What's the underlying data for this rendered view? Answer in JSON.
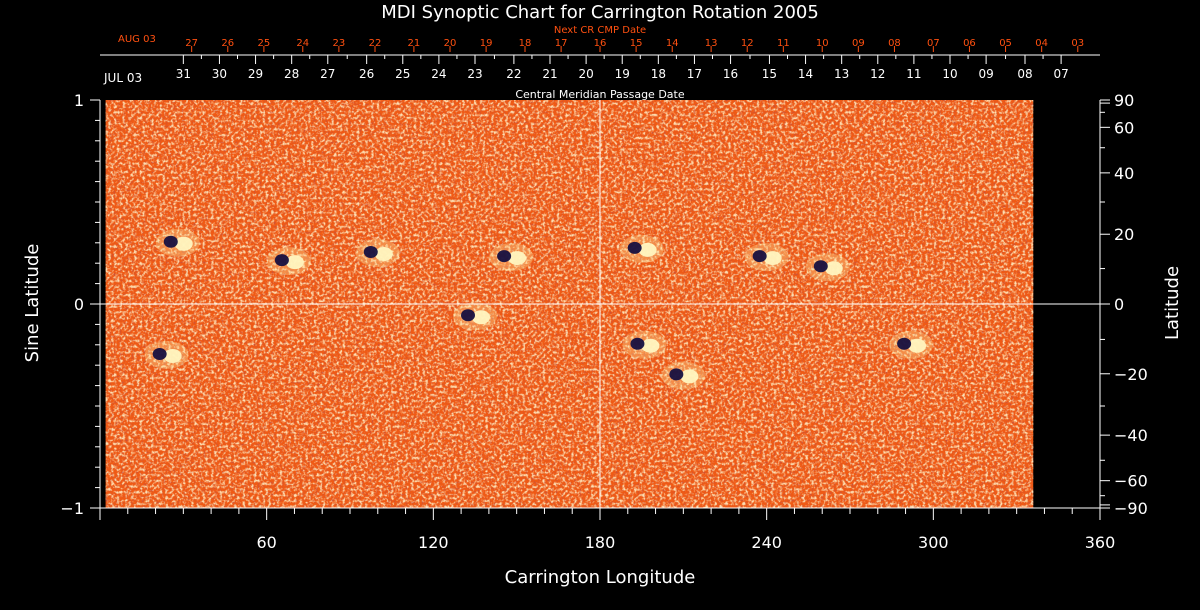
{
  "chart_data": {
    "type": "heatmap",
    "title": "MDI Synoptic Chart for Carrington Rotation 2005",
    "xlabel": "Carrington Longitude",
    "ylabel_left": "Sine Latitude",
    "ylabel_right": "Latitude",
    "xlim": [
      0,
      360
    ],
    "ylim": [
      -1,
      1
    ],
    "x_ticks": [
      60,
      120,
      180,
      240,
      300,
      360
    ],
    "y_ticks_left": [
      {
        "value": 1,
        "label": "1"
      },
      {
        "value": 0,
        "label": "0"
      },
      {
        "value": -1,
        "label": "−1"
      }
    ],
    "y_ticks_right": [
      {
        "deg": 90,
        "label": "90"
      },
      {
        "deg": 60,
        "label": "60"
      },
      {
        "deg": 40,
        "label": "40"
      },
      {
        "deg": 20,
        "label": "20"
      },
      {
        "deg": 0,
        "label": "0"
      },
      {
        "deg": -20,
        "label": "−20"
      },
      {
        "deg": -40,
        "label": "−40"
      },
      {
        "deg": -60,
        "label": "−60"
      },
      {
        "deg": -90,
        "label": "−90"
      }
    ],
    "cmp_axis": {
      "label": "Central Meridian Passage Date",
      "start_label": "JUL 03",
      "dates": [
        {
          "lon": 30,
          "label": "31"
        },
        {
          "lon": 43,
          "label": "30"
        },
        {
          "lon": 56,
          "label": "29"
        },
        {
          "lon": 69,
          "label": "28"
        },
        {
          "lon": 82,
          "label": "27"
        },
        {
          "lon": 96,
          "label": "26"
        },
        {
          "lon": 109,
          "label": "25"
        },
        {
          "lon": 122,
          "label": "24"
        },
        {
          "lon": 135,
          "label": "23"
        },
        {
          "lon": 149,
          "label": "22"
        },
        {
          "lon": 162,
          "label": "21"
        },
        {
          "lon": 175,
          "label": "20"
        },
        {
          "lon": 188,
          "label": "19"
        },
        {
          "lon": 201,
          "label": "18"
        },
        {
          "lon": 214,
          "label": "17"
        },
        {
          "lon": 227,
          "label": "16"
        },
        {
          "lon": 241,
          "label": "15"
        },
        {
          "lon": 254,
          "label": "14"
        },
        {
          "lon": 267,
          "label": "13"
        },
        {
          "lon": 280,
          "label": "12"
        },
        {
          "lon": 293,
          "label": "11"
        },
        {
          "lon": 306,
          "label": "10"
        },
        {
          "lon": 319,
          "label": "09"
        },
        {
          "lon": 333,
          "label": "08"
        },
        {
          "lon": 346,
          "label": "07"
        }
      ]
    },
    "next_cr_axis": {
      "label": "Next CR CMP Date",
      "start_label": "AUG 03",
      "dates": [
        {
          "lon": 33,
          "label": "27"
        },
        {
          "lon": 46,
          "label": "26"
        },
        {
          "lon": 59,
          "label": "25"
        },
        {
          "lon": 73,
          "label": "24"
        },
        {
          "lon": 86,
          "label": "23"
        },
        {
          "lon": 99,
          "label": "22"
        },
        {
          "lon": 113,
          "label": "21"
        },
        {
          "lon": 126,
          "label": "20"
        },
        {
          "lon": 139,
          "label": "19"
        },
        {
          "lon": 153,
          "label": "18"
        },
        {
          "lon": 166,
          "label": "17"
        },
        {
          "lon": 180,
          "label": "16"
        },
        {
          "lon": 193,
          "label": "15"
        },
        {
          "lon": 206,
          "label": "14"
        },
        {
          "lon": 220,
          "label": "13"
        },
        {
          "lon": 233,
          "label": "12"
        },
        {
          "lon": 246,
          "label": "11"
        },
        {
          "lon": 260,
          "label": "10"
        },
        {
          "lon": 273,
          "label": "09"
        },
        {
          "lon": 286,
          "label": "08"
        },
        {
          "lon": 300,
          "label": "07"
        },
        {
          "lon": 313,
          "label": "06"
        },
        {
          "lon": 326,
          "label": "05"
        },
        {
          "lon": 339,
          "label": "04"
        },
        {
          "lon": 352,
          "label": "03"
        }
      ]
    },
    "data_lon_range": [
      2,
      336
    ],
    "background_field_color": "#f05a14",
    "positive_polarity_color": "#fff6c0",
    "negative_polarity_color": "#161040",
    "active_regions": [
      {
        "lon": 28,
        "sinlat": 0.3,
        "polarity": "mixed"
      },
      {
        "lon": 68,
        "sinlat": 0.21,
        "polarity": "mixed"
      },
      {
        "lon": 100,
        "sinlat": 0.25,
        "polarity": "mixed"
      },
      {
        "lon": 148,
        "sinlat": 0.23,
        "polarity": "mixed"
      },
      {
        "lon": 195,
        "sinlat": 0.27,
        "polarity": "mixed"
      },
      {
        "lon": 240,
        "sinlat": 0.23,
        "polarity": "mixed"
      },
      {
        "lon": 262,
        "sinlat": 0.18,
        "polarity": "mixed"
      },
      {
        "lon": 135,
        "sinlat": -0.06,
        "polarity": "mixed"
      },
      {
        "lon": 196,
        "sinlat": -0.2,
        "polarity": "mixed"
      },
      {
        "lon": 210,
        "sinlat": -0.35,
        "polarity": "mixed"
      },
      {
        "lon": 292,
        "sinlat": -0.2,
        "polarity": "mixed"
      },
      {
        "lon": 24,
        "sinlat": -0.25,
        "polarity": "mixed"
      }
    ],
    "grid_lines": {
      "longitude": 180,
      "sine_latitude": 0
    },
    "label_color": "#ffffff",
    "cmp_next_color": "#ff5010"
  }
}
